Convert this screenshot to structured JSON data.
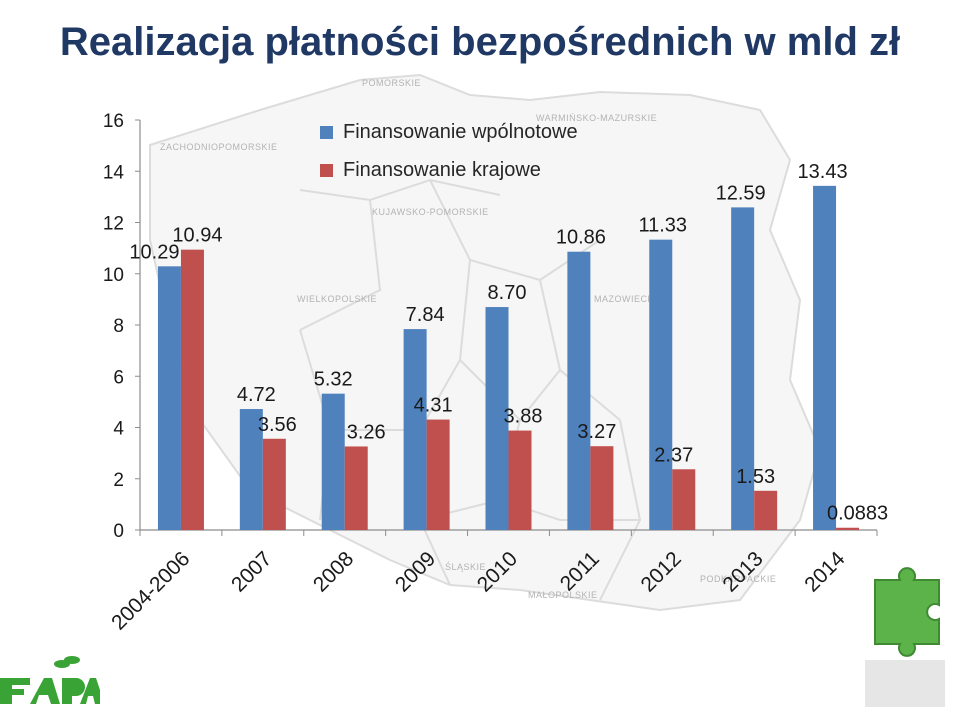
{
  "title": "Realizacja płatności bezpośrednich w mld zł",
  "map_regions": [
    "POMORSKIE",
    "WARMIŃSKO-MAZURSKIE",
    "ZACHODNIOPOMORSKIE",
    "KUJAWSKO-POMORSKIE",
    "WIELKOPOLSKIE",
    "MAZOWIECKIE",
    "ŚLĄSKIE",
    "MAŁOPOLSKIE",
    "PODKARPACKIE"
  ],
  "colors": {
    "series1": "#4f81bd",
    "series2": "#c0504d",
    "title": "#1f3864"
  },
  "chart_data": {
    "type": "bar",
    "title": "Realizacja płatności bezpośrednich w mld zł",
    "categories": [
      "2004-2006",
      "2007",
      "2008",
      "2009",
      "2010",
      "2011",
      "2012",
      "2013",
      "2014"
    ],
    "series": [
      {
        "name": "Finansowanie wpólnotowe",
        "values": [
          10.29,
          4.72,
          5.32,
          7.84,
          8.7,
          10.86,
          11.33,
          12.59,
          13.43
        ],
        "labels": [
          "10.29",
          "4.72",
          "5.32",
          "7.84",
          "8.70",
          "10.86",
          "11.33",
          "12.59",
          "13.43"
        ]
      },
      {
        "name": "Finansowanie krajowe",
        "values": [
          10.94,
          3.56,
          3.26,
          4.31,
          3.88,
          3.27,
          2.37,
          1.53,
          0.0883
        ],
        "labels": [
          "10.94",
          "3.56",
          "3.26",
          "4.31",
          "3.88",
          "3.27",
          "2.37",
          "1.53",
          "0.0883"
        ]
      }
    ],
    "ylim": [
      0,
      16
    ],
    "yticks": [
      "0",
      "2",
      "4",
      "6",
      "8",
      "10",
      "12",
      "14",
      "16"
    ],
    "xlabel": "",
    "ylabel": "",
    "legend": "top-center",
    "grid": false
  }
}
